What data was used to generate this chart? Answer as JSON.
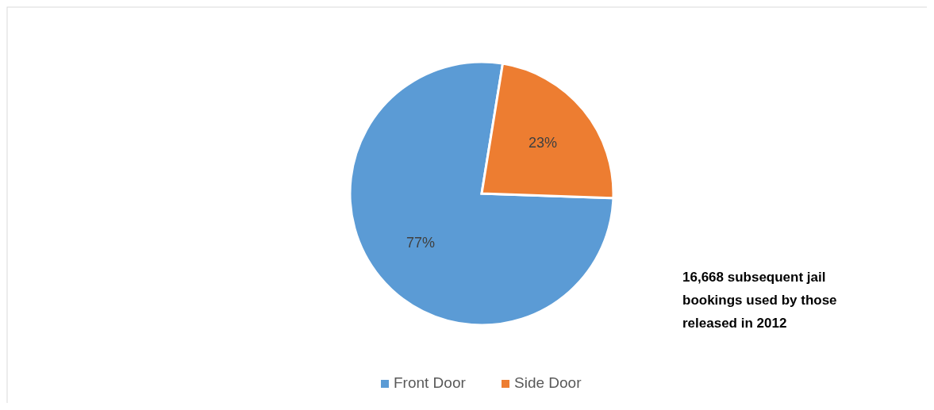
{
  "chart_data": {
    "type": "pie",
    "categories": [
      "Front Door",
      "Side Door"
    ],
    "values": [
      77,
      23
    ],
    "colors": [
      "#5b9bd5",
      "#ed7d31"
    ],
    "value_labels": [
      "77%",
      "23%"
    ],
    "legend": "bottom",
    "annotations": [
      "16,668 subsequent jail bookings used by those released in 2012"
    ]
  }
}
